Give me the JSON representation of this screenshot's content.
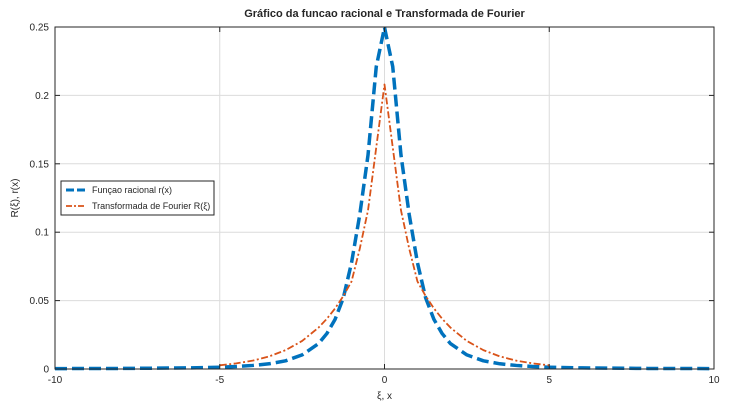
{
  "chart_data": {
    "type": "line",
    "title": "Gráfico da funcao racional e Transformada de Fourier",
    "xlabel": "ξ, x",
    "ylabel": "R(ξ), r(x)",
    "xlim": [
      -10,
      10
    ],
    "ylim": [
      0,
      0.25
    ],
    "xticks": [
      -10,
      -5,
      0,
      5,
      10
    ],
    "xtick_labels": [
      "-10",
      "-5",
      "0",
      "5",
      "10"
    ],
    "yticks": [
      0,
      0.05,
      0.1,
      0.15,
      0.2,
      0.25
    ],
    "ytick_labels": [
      "0",
      "0.05",
      "0.1",
      "0.15",
      "0.2",
      "0.25"
    ],
    "grid": true,
    "legend_position": "left-center",
    "series": [
      {
        "name": "Funçao racional r(x)",
        "color": "#0072BD",
        "style": "dashed",
        "x": [
          -10,
          -8,
          -6,
          -5,
          -4.5,
          -4,
          -3.5,
          -3,
          -2.5,
          -2,
          -1.75,
          -1.5,
          -1.25,
          -1,
          -0.75,
          -0.5,
          -0.25,
          0,
          0.25,
          0.5,
          0.75,
          1,
          1.25,
          1.5,
          1.75,
          2,
          2.5,
          3,
          3.5,
          4,
          4.5,
          5,
          6,
          8,
          10
        ],
        "y": [
          0.0003,
          0.0004,
          0.0008,
          0.0013,
          0.0018,
          0.0026,
          0.0038,
          0.006,
          0.0103,
          0.0186,
          0.0259,
          0.0363,
          0.0519,
          0.0777,
          0.1129,
          0.1564,
          0.221,
          0.2497,
          0.221,
          0.1564,
          0.1129,
          0.0777,
          0.0519,
          0.0363,
          0.0259,
          0.0186,
          0.0103,
          0.006,
          0.0038,
          0.0026,
          0.0018,
          0.0013,
          0.0008,
          0.0004,
          0.0003
        ]
      },
      {
        "name": "Transformada de Fourier R(ξ)",
        "color": "#D95319",
        "style": "dashdot",
        "x": [
          -5,
          -4.5,
          -4,
          -3.5,
          -3,
          -2.5,
          -2,
          -1.75,
          -1.5,
          -1.25,
          -1,
          -0.75,
          -0.5,
          -0.25,
          0,
          0.25,
          0.5,
          0.75,
          1,
          1.25,
          1.5,
          1.75,
          2,
          2.5,
          3,
          3.5,
          4,
          4.5,
          5
        ],
        "y": [
          0.0027,
          0.0041,
          0.0061,
          0.0092,
          0.0138,
          0.0205,
          0.0303,
          0.0367,
          0.0443,
          0.0533,
          0.064,
          0.088,
          0.116,
          0.162,
          0.208,
          0.162,
          0.116,
          0.088,
          0.064,
          0.0533,
          0.0443,
          0.0367,
          0.0303,
          0.0205,
          0.0138,
          0.0092,
          0.0061,
          0.0041,
          0.0027
        ]
      }
    ]
  }
}
